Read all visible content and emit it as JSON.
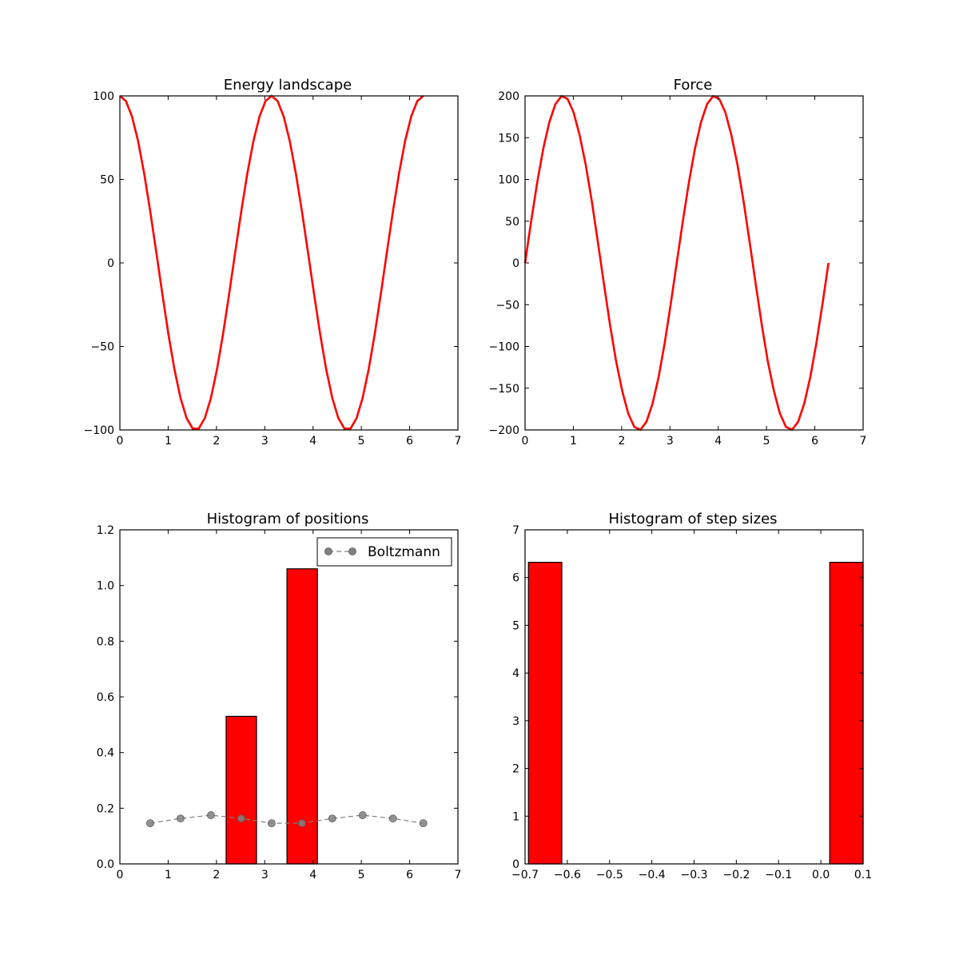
{
  "chart_data": [
    {
      "type": "line",
      "title": "Energy landscape",
      "xlabel": "",
      "ylabel": "",
      "xlim": [
        0,
        7
      ],
      "ylim": [
        -100,
        100
      ],
      "xticks": [
        "0",
        "1",
        "2",
        "3",
        "4",
        "5",
        "6",
        "7"
      ],
      "yticks": [
        "−100",
        "−50",
        "0",
        "50",
        "100"
      ],
      "grid": false,
      "series": [
        {
          "color": "#ff0000",
          "x": [
            0.0,
            0.1256,
            0.2513,
            0.377,
            0.5027,
            0.6283,
            0.754,
            0.8796,
            1.0053,
            1.131,
            1.2566,
            1.3823,
            1.508,
            1.6336,
            1.7593,
            1.885,
            2.0106,
            2.1363,
            2.2619,
            2.3876,
            2.5133,
            2.6389,
            2.7646,
            2.8903,
            3.0159,
            3.1416,
            3.2673,
            3.3929,
            3.5186,
            3.6442,
            3.7699,
            3.8956,
            4.0212,
            4.1469,
            4.2726,
            4.3982,
            4.5239,
            4.6496,
            4.7752,
            4.9009,
            5.0265,
            5.1522,
            5.2779,
            5.4035,
            5.5292,
            5.6549,
            5.7805,
            5.9062,
            6.0319,
            6.1575,
            6.2832
          ],
          "y": [
            100.0,
            96.9,
            87.6,
            72.9,
            53.6,
            30.9,
            6.3,
            -18.7,
            -42.6,
            -63.8,
            -80.9,
            -92.9,
            -99.2,
            -99.2,
            -92.9,
            -80.9,
            -63.8,
            -42.6,
            -18.7,
            6.3,
            30.9,
            53.6,
            72.9,
            87.6,
            96.9,
            100.0,
            96.9,
            87.6,
            72.9,
            53.6,
            30.9,
            6.3,
            -18.7,
            -42.6,
            -63.8,
            -80.9,
            -92.9,
            -99.2,
            -99.2,
            -92.9,
            -80.9,
            -63.8,
            -42.6,
            -18.7,
            6.3,
            30.9,
            53.6,
            72.9,
            87.6,
            96.9,
            100.0
          ]
        }
      ]
    },
    {
      "type": "line",
      "title": "Force",
      "xlabel": "",
      "ylabel": "",
      "xlim": [
        0,
        7
      ],
      "ylim": [
        -200,
        200
      ],
      "xticks": [
        "0",
        "1",
        "2",
        "3",
        "4",
        "5",
        "6",
        "7"
      ],
      "yticks": [
        "−200",
        "−150",
        "−100",
        "−50",
        "0",
        "50",
        "100",
        "150",
        "200"
      ],
      "grid": false,
      "series": [
        {
          "color": "#ff0000",
          "x": [
            0.0,
            0.1256,
            0.2513,
            0.377,
            0.5027,
            0.6283,
            0.754,
            0.8796,
            1.0053,
            1.131,
            1.2566,
            1.3823,
            1.508,
            1.6336,
            1.7593,
            1.885,
            2.0106,
            2.1363,
            2.2619,
            2.3876,
            2.5133,
            2.6389,
            2.7646,
            2.8903,
            3.0159,
            3.1416,
            3.2673,
            3.3929,
            3.5186,
            3.6442,
            3.7699,
            3.8956,
            4.0212,
            4.1469,
            4.2726,
            4.3982,
            4.5239,
            4.6496,
            4.7752,
            4.9009,
            5.0265,
            5.1522,
            5.2779,
            5.4035,
            5.5292,
            5.6549,
            5.7805,
            5.9062,
            6.0319,
            6.1575,
            6.2832
          ],
          "y": [
            0.0,
            49.7,
            96.3,
            136.8,
            168.6,
            190.2,
            199.8,
            196.4,
            180.4,
            152.9,
            117.6,
            74.0,
            25.1,
            -25.1,
            -74.0,
            -117.6,
            -152.9,
            -180.4,
            -196.4,
            -199.8,
            -190.2,
            -168.6,
            -136.8,
            -96.3,
            -49.7,
            0.0,
            49.7,
            96.3,
            136.8,
            168.6,
            190.2,
            199.8,
            196.4,
            180.4,
            152.9,
            117.6,
            74.0,
            25.1,
            -25.1,
            -74.0,
            -117.6,
            -152.9,
            -180.4,
            -196.4,
            -199.8,
            -190.2,
            -168.6,
            -136.8,
            -96.3,
            -49.7,
            0.0
          ]
        }
      ]
    },
    {
      "type": "bar",
      "title": "Histogram of positions",
      "xlabel": "",
      "ylabel": "",
      "xlim": [
        0,
        7
      ],
      "ylim": [
        0,
        1.2
      ],
      "xticks": [
        "0",
        "1",
        "2",
        "3",
        "4",
        "5",
        "6",
        "7"
      ],
      "yticks": [
        "0.0",
        "0.2",
        "0.4",
        "0.6",
        "0.8",
        "1.0",
        "1.2"
      ],
      "grid": false,
      "bars": [
        {
          "x0": 2.2,
          "x1": 2.83,
          "value": 0.53
        },
        {
          "x0": 3.46,
          "x1": 4.09,
          "value": 1.06
        }
      ],
      "bar_color": "#ff0000",
      "series": [
        {
          "name": "Boltzmann",
          "type": "line-markers",
          "color": "#808080",
          "x": [
            0.628,
            1.257,
            1.885,
            2.513,
            3.142,
            3.77,
            4.398,
            5.027,
            5.655,
            6.283
          ],
          "y": [
            0.146,
            0.163,
            0.175,
            0.163,
            0.146,
            0.146,
            0.163,
            0.175,
            0.163,
            0.146
          ]
        }
      ],
      "legend": {
        "placement": "top-right",
        "entries": [
          "Boltzmann"
        ]
      }
    },
    {
      "type": "bar",
      "title": "Histogram of step sizes",
      "xlabel": "",
      "ylabel": "",
      "xlim": [
        -0.7,
        0.1
      ],
      "ylim": [
        0,
        7
      ],
      "xticks": [
        "−0.7",
        "−0.6",
        "−0.5",
        "−0.4",
        "−0.3",
        "−0.2",
        "−0.1",
        "0.0",
        "0.1"
      ],
      "yticks": [
        "0",
        "1",
        "2",
        "3",
        "4",
        "5",
        "6",
        "7"
      ],
      "grid": false,
      "bars": [
        {
          "x0": -0.692,
          "x1": -0.613,
          "value": 6.32
        },
        {
          "x0": 0.021,
          "x1": 0.1,
          "value": 6.32
        }
      ],
      "bar_color": "#ff0000"
    }
  ]
}
